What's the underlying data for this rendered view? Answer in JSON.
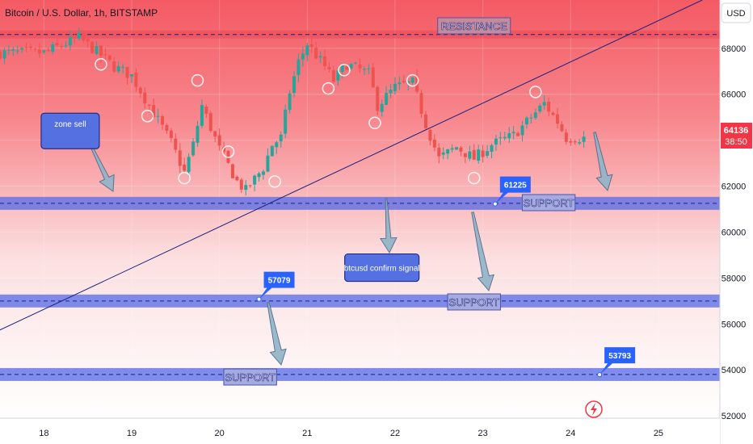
{
  "header": {
    "title": "Bitcoin / U.S. Dollar, 1h, BITSTAMP",
    "currency": "USD"
  },
  "price_tag": {
    "price": "64136",
    "countdown": "38:50"
  },
  "colors": {
    "up": "#26a69a",
    "down": "#ef5350",
    "band_fill": "#5b6ee8",
    "band_line": "#1a237e",
    "callout": "#2962ff",
    "arrow": "#90b4c8",
    "trendline": "#1a237e",
    "price_tag": "#f23645",
    "bg_top": "#f45a64",
    "bg_bottom": "#ffffff"
  },
  "chart_data": {
    "type": "candlestick",
    "x_axis": {
      "ticks": [
        "18",
        "19",
        "20",
        "21",
        "22",
        "23",
        "24",
        "25"
      ],
      "range": [
        "17.5",
        "25.7"
      ]
    },
    "y_axis": {
      "ticks": [
        52000,
        54000,
        56000,
        58000,
        60000,
        62000,
        64000,
        66000,
        68000
      ],
      "range": [
        51900,
        70100
      ]
    },
    "levels": [
      {
        "name": "RESISTANCE",
        "price": 68600,
        "label": "RESISTANCE"
      },
      {
        "name": "support-1",
        "price": 61250,
        "label": "SUPPORT"
      },
      {
        "name": "support-2",
        "price": 57000,
        "label": "SUPPORT"
      },
      {
        "name": "support-3",
        "price": 53800,
        "label": "SUPPORT"
      }
    ],
    "callouts": [
      {
        "text": "61225",
        "at": [
          23.14,
          61225
        ]
      },
      {
        "text": "57079",
        "at": [
          20.45,
          57079
        ]
      },
      {
        "text": "53793",
        "at": [
          24.33,
          53793
        ]
      }
    ],
    "notes": [
      {
        "text": "zone sell",
        "at": [
          18.3,
          64400
        ]
      },
      {
        "text": "btcusd confirm signal",
        "at": [
          21.85,
          58450
        ]
      }
    ],
    "trendline": {
      "from": [
        17.45,
        55650
      ],
      "to": [
        25.5,
        70100
      ]
    },
    "anchors": [
      [
        18.0,
        67800
      ],
      [
        18.4,
        68450
      ],
      [
        18.65,
        67700
      ],
      [
        18.8,
        67200
      ],
      [
        19.0,
        66800
      ],
      [
        19.2,
        65500
      ],
      [
        19.45,
        63900
      ],
      [
        19.6,
        62600
      ],
      [
        19.7,
        63800
      ],
      [
        19.8,
        65500
      ],
      [
        20.0,
        63600
      ],
      [
        20.2,
        62200
      ],
      [
        20.3,
        61800
      ],
      [
        20.5,
        62800
      ],
      [
        20.6,
        63800
      ],
      [
        20.7,
        64100
      ],
      [
        20.8,
        66100
      ],
      [
        20.9,
        67400
      ],
      [
        21.0,
        68200
      ],
      [
        21.2,
        67200
      ],
      [
        21.3,
        66600
      ],
      [
        21.45,
        67300
      ],
      [
        21.7,
        66900
      ],
      [
        21.8,
        65500
      ],
      [
        22.0,
        66300
      ],
      [
        22.2,
        66500
      ],
      [
        22.35,
        64700
      ],
      [
        22.5,
        63200
      ],
      [
        22.7,
        63700
      ],
      [
        22.9,
        63200
      ],
      [
        23.1,
        63800
      ],
      [
        23.35,
        64200
      ],
      [
        23.55,
        65000
      ],
      [
        23.7,
        65600
      ],
      [
        23.85,
        64800
      ],
      [
        23.95,
        64100
      ],
      [
        24.15,
        64100
      ]
    ]
  }
}
